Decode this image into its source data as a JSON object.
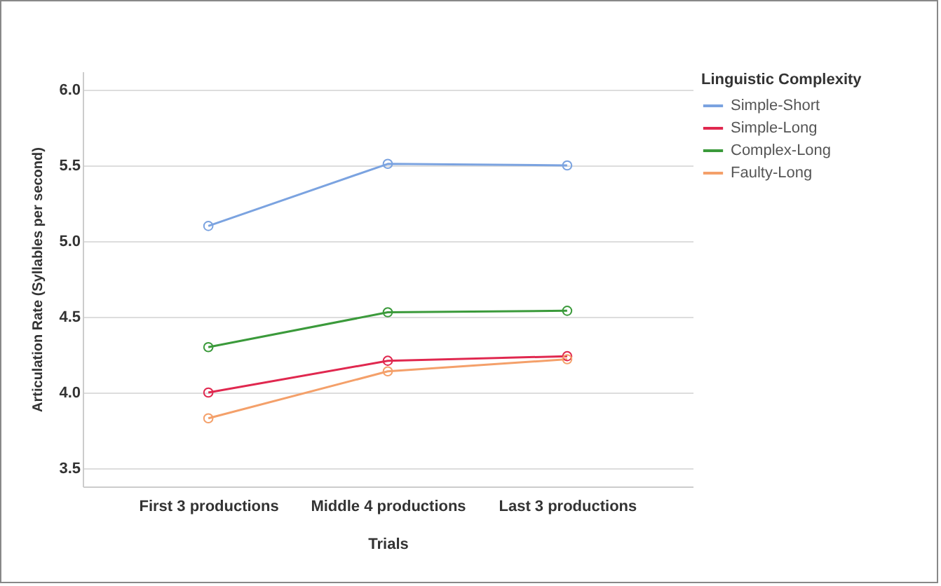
{
  "chart_data": {
    "type": "line",
    "xlabel": "Trials",
    "ylabel": "Articulation Rate (Syllables per second)",
    "legend_title": "Linguistic Complexity",
    "categories": [
      "First 3 productions",
      "Middle 4 productions",
      "Last 3 productions"
    ],
    "series": [
      {
        "name": "Simple-Short",
        "color": "#7ba3e0",
        "values": [
          5.1,
          5.51,
          5.5
        ]
      },
      {
        "name": "Simple-Long",
        "color": "#e0284f",
        "values": [
          4.0,
          4.21,
          4.24
        ]
      },
      {
        "name": "Complex-Long",
        "color": "#3b9a3b",
        "values": [
          4.3,
          4.53,
          4.54
        ]
      },
      {
        "name": "Faulty-Long",
        "color": "#f4a06a",
        "values": [
          3.83,
          4.14,
          4.22
        ]
      }
    ],
    "ylim": [
      3.38,
      6.12
    ],
    "yticks": [
      3.5,
      {
        "value": 4,
        "label": "4.0"
      },
      4.5,
      {
        "value": 5,
        "label": "5.0"
      },
      5.5,
      {
        "value": 6,
        "label": "6.0"
      }
    ],
    "grid": "y",
    "legend": "top right",
    "marker": "circle",
    "line_style": "solid"
  }
}
